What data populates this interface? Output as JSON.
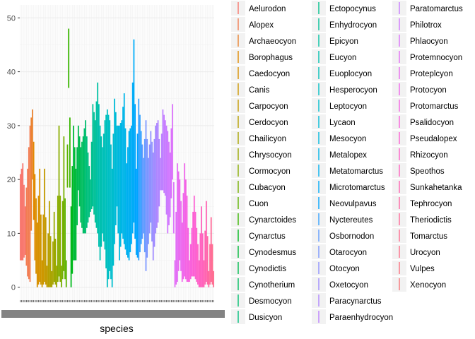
{
  "chart_data": {
    "type": "bar",
    "xlabel": "species",
    "ylabel": "",
    "ylim": [
      0,
      50
    ],
    "yticks": [
      0,
      10,
      20,
      30,
      40,
      50
    ],
    "grid": true,
    "legend_placement": "right",
    "legend_columns": 3,
    "legend": [
      {
        "name": "Aelurodon",
        "color": "#F8766D"
      },
      {
        "name": "Alopex",
        "color": "#F27D53"
      },
      {
        "name": "Archaeocyon",
        "color": "#EA8331"
      },
      {
        "name": "Borophagus",
        "color": "#E28A00"
      },
      {
        "name": "Caedocyon",
        "color": "#D89000"
      },
      {
        "name": "Canis",
        "color": "#CE9700"
      },
      {
        "name": "Carpocyon",
        "color": "#C49A00"
      },
      {
        "name": "Cerdocyon",
        "color": "#B79F00"
      },
      {
        "name": "Chailicyon",
        "color": "#A9A400"
      },
      {
        "name": "Chrysocyon",
        "color": "#9AA800"
      },
      {
        "name": "Cormocyon",
        "color": "#89AC00"
      },
      {
        "name": "Cubacyon",
        "color": "#76AF00"
      },
      {
        "name": "Cuon",
        "color": "#5DB300"
      },
      {
        "name": "Cynarctoides",
        "color": "#39B600"
      },
      {
        "name": "Cynarctus",
        "color": "#00B81B"
      },
      {
        "name": "Cynodesmus",
        "color": "#00BA38"
      },
      {
        "name": "Cynodictis",
        "color": "#00BB4E"
      },
      {
        "name": "Cynotherium",
        "color": "#00BD5F"
      },
      {
        "name": "Desmocyon",
        "color": "#00BE6F"
      },
      {
        "name": "Dusicyon",
        "color": "#00BF7D"
      },
      {
        "name": "Ectopocynus",
        "color": "#00C08B"
      },
      {
        "name": "Enhydrocyon",
        "color": "#00C097"
      },
      {
        "name": "Epicyon",
        "color": "#00C1A3"
      },
      {
        "name": "Eucyon",
        "color": "#00C0AF"
      },
      {
        "name": "Euoplocyon",
        "color": "#00C0B9"
      },
      {
        "name": "Hesperocyon",
        "color": "#00BFC4"
      },
      {
        "name": "Leptocyon",
        "color": "#00BDCD"
      },
      {
        "name": "Lycaon",
        "color": "#00BBD7"
      },
      {
        "name": "Mesocyon",
        "color": "#00B8DF"
      },
      {
        "name": "Metalopex",
        "color": "#00B5E8"
      },
      {
        "name": "Metatomarctus",
        "color": "#00B0F0"
      },
      {
        "name": "Microtomarctus",
        "color": "#00ABF7"
      },
      {
        "name": "Neovulpavus",
        "color": "#00A5FF"
      },
      {
        "name": "Nyctereutes",
        "color": "#35A2FF"
      },
      {
        "name": "Osbornodon",
        "color": "#619CFF"
      },
      {
        "name": "Otarocyon",
        "color": "#7B96FF"
      },
      {
        "name": "Otocyon",
        "color": "#8F91FF"
      },
      {
        "name": "Oxetocyon",
        "color": "#A08BFF"
      },
      {
        "name": "Paracynarctus",
        "color": "#AF86FF"
      },
      {
        "name": "Paraenhydrocyon",
        "color": "#BC81FF"
      },
      {
        "name": "Paratomarctus",
        "color": "#C77CFF"
      },
      {
        "name": "Philotrox",
        "color": "#D177FF"
      },
      {
        "name": "Phlaocyon",
        "color": "#DB72FB"
      },
      {
        "name": "Protemnocyon",
        "color": "#E36EF6"
      },
      {
        "name": "Proteplcyon",
        "color": "#E96BF0"
      },
      {
        "name": "Protocyon",
        "color": "#EF67EB"
      },
      {
        "name": "Protomarctus",
        "color": "#F564E3"
      },
      {
        "name": "Psalidocyon",
        "color": "#F962DB"
      },
      {
        "name": "Pseudalopex",
        "color": "#FC61D3"
      },
      {
        "name": "Rhizocyon",
        "color": "#FF61C9"
      },
      {
        "name": "Speothos",
        "color": "#FF62BE"
      },
      {
        "name": "Sunkahetanka",
        "color": "#FF64B2"
      },
      {
        "name": "Tephrocyon",
        "color": "#FF67A4"
      },
      {
        "name": "Theriodictis",
        "color": "#FF6A98"
      },
      {
        "name": "Tomarctus",
        "color": "#FF6C90"
      },
      {
        "name": "Urocyon",
        "color": "#FD6F88"
      },
      {
        "name": "Vulpes",
        "color": "#FA7280"
      },
      {
        "name": "Xenocyon",
        "color": "#F77577"
      }
    ],
    "profile": [
      [
        0,
        21,
        5
      ],
      [
        2,
        23,
        5
      ],
      [
        4,
        15,
        6
      ],
      [
        6,
        22,
        2
      ],
      [
        8,
        30,
        1
      ],
      [
        10,
        33,
        20
      ],
      [
        12,
        21,
        5
      ],
      [
        14,
        12,
        0
      ],
      [
        16,
        22,
        1
      ],
      [
        18,
        5,
        0
      ],
      [
        20,
        22,
        1
      ],
      [
        22,
        4,
        0
      ],
      [
        24,
        16,
        0
      ],
      [
        26,
        3,
        0
      ],
      [
        28,
        14,
        1
      ],
      [
        30,
        4,
        0
      ],
      [
        32,
        30,
        2
      ],
      [
        34,
        4,
        0
      ],
      [
        36,
        28,
        3
      ],
      [
        38,
        5,
        0
      ],
      [
        40,
        48,
        37
      ],
      [
        42,
        15,
        0
      ],
      [
        44,
        30,
        5
      ],
      [
        46,
        22,
        5
      ],
      [
        48,
        30,
        18
      ],
      [
        50,
        26,
        12
      ],
      [
        52,
        28,
        10
      ],
      [
        54,
        31,
        10
      ],
      [
        56,
        25,
        12
      ],
      [
        58,
        20,
        14
      ],
      [
        60,
        34,
        15
      ],
      [
        62,
        31,
        12
      ],
      [
        64,
        38,
        10
      ],
      [
        66,
        30,
        5
      ],
      [
        68,
        26,
        10
      ],
      [
        70,
        31,
        7
      ],
      [
        72,
        33,
        0
      ],
      [
        74,
        31,
        3
      ],
      [
        76,
        22,
        0
      ],
      [
        78,
        35,
        8
      ],
      [
        80,
        30,
        15
      ],
      [
        82,
        30,
        5
      ],
      [
        84,
        31,
        10
      ],
      [
        86,
        36,
        8
      ],
      [
        88,
        23,
        6
      ],
      [
        90,
        29,
        5
      ],
      [
        92,
        30,
        8
      ],
      [
        94,
        46,
        12
      ],
      [
        96,
        22,
        6
      ],
      [
        98,
        35,
        5
      ],
      [
        100,
        29,
        8
      ],
      [
        102,
        24,
        10
      ],
      [
        104,
        31,
        3
      ],
      [
        106,
        24,
        8
      ],
      [
        108,
        29,
        12
      ],
      [
        110,
        25,
        5
      ],
      [
        112,
        30,
        10
      ],
      [
        114,
        31,
        12
      ],
      [
        116,
        24,
        18
      ],
      [
        118,
        33,
        18
      ],
      [
        120,
        31,
        17
      ],
      [
        122,
        29,
        10
      ],
      [
        124,
        25,
        13
      ],
      [
        126,
        34,
        20
      ],
      [
        128,
        5,
        0
      ],
      [
        130,
        23,
        1
      ],
      [
        132,
        20,
        5
      ],
      [
        134,
        12,
        1
      ],
      [
        136,
        23,
        2
      ],
      [
        138,
        17,
        1
      ],
      [
        140,
        5,
        1
      ],
      [
        142,
        11,
        2
      ],
      [
        144,
        17,
        2
      ],
      [
        146,
        11,
        1
      ],
      [
        148,
        5,
        0
      ],
      [
        150,
        15,
        0
      ],
      [
        152,
        5,
        0
      ],
      [
        154,
        16,
        1
      ],
      [
        156,
        3,
        0
      ],
      [
        158,
        13,
        1
      ],
      [
        160,
        3,
        0
      ]
    ],
    "segment_boundaries": [
      0,
      5,
      9,
      11,
      13,
      17,
      20,
      23,
      25,
      28,
      31,
      34,
      37,
      40,
      42,
      44,
      47,
      50,
      53,
      55,
      58,
      60,
      63,
      65,
      68,
      72,
      75,
      78,
      81,
      84,
      88,
      92,
      95,
      98,
      101,
      104,
      107,
      110,
      113,
      116,
      119,
      122,
      125,
      128,
      131,
      134,
      137,
      140,
      143,
      146,
      149,
      152,
      155,
      157,
      159,
      161,
      162,
      163,
      163
    ]
  }
}
